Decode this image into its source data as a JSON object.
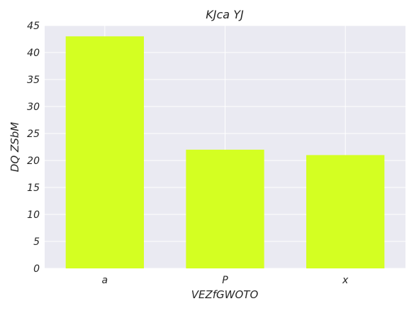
{
  "chart_data": {
    "type": "bar",
    "title": "KJca YJ",
    "xlabel": "VEZfGWOTO",
    "ylabel": "DQ ZSbM",
    "categories": [
      "a",
      "P",
      "x"
    ],
    "values": [
      43,
      22,
      21
    ],
    "ylim": [
      0,
      45
    ],
    "yticks": [
      0,
      5,
      10,
      15,
      20,
      25,
      30,
      35,
      40,
      45
    ],
    "grid": true,
    "bar_color": "#d4ff22",
    "plot_background": "#eaeaf2",
    "grid_color": "#ffffff"
  }
}
